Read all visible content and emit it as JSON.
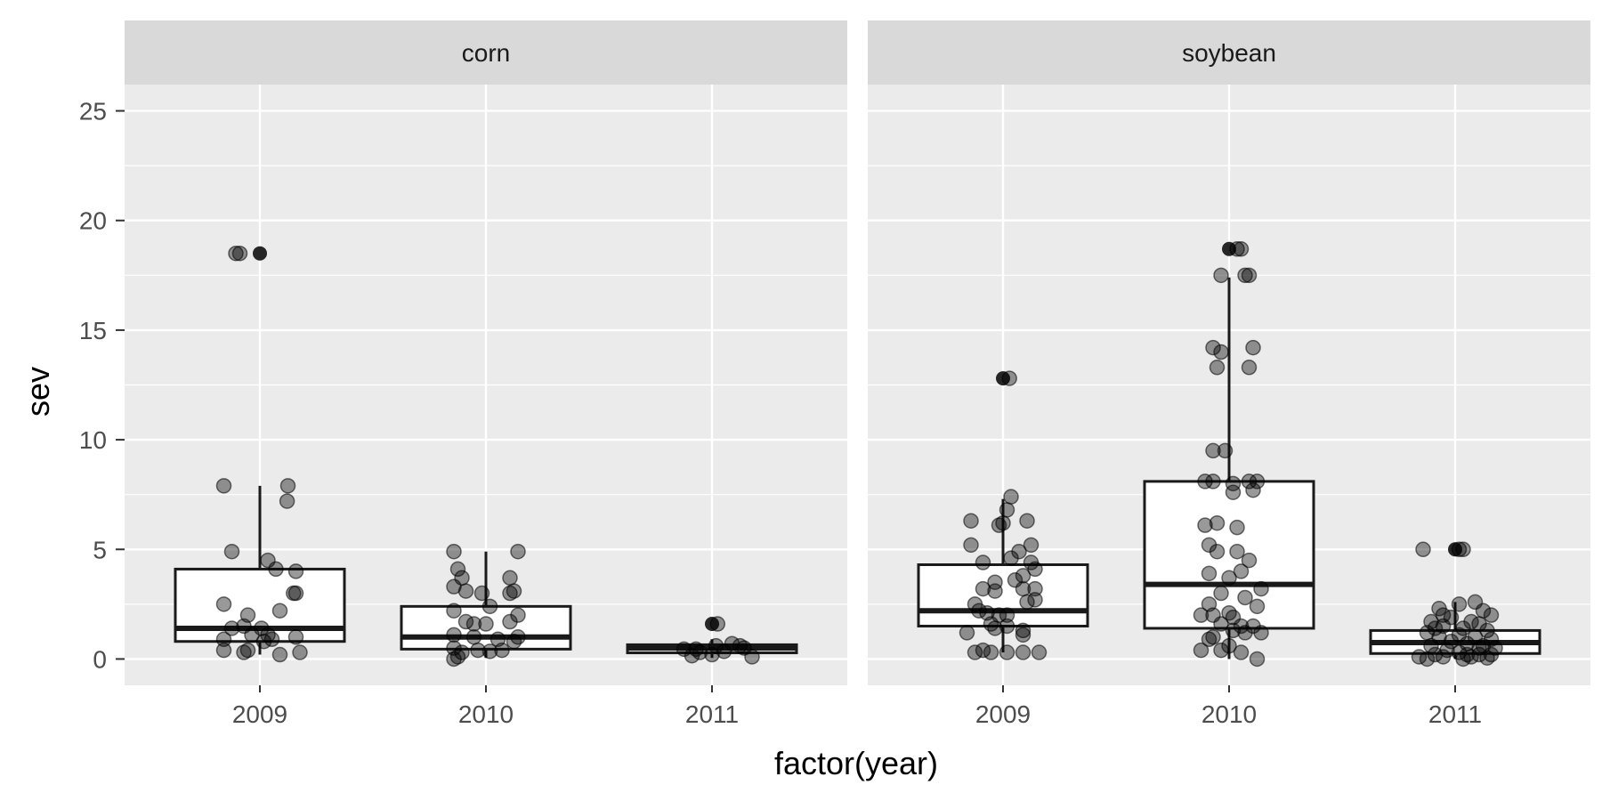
{
  "chart_data": {
    "type": "boxplot",
    "xlabel": "factor(year)",
    "ylabel": "sev",
    "ylim": [
      -1.2,
      26.2
    ],
    "yticks": [
      0,
      5,
      10,
      15,
      20,
      25
    ],
    "categories": [
      "2009",
      "2010",
      "2011"
    ],
    "colors": {
      "panel_bg": "#ebebeb",
      "strip_bg": "#d9d9d9",
      "grid": "#ffffff",
      "box_line": "#1a1a1a",
      "point": "#000000",
      "outlier": "#262626"
    },
    "panels": [
      {
        "name": "corn",
        "boxes": [
          {
            "category": "2009",
            "q1": 0.8,
            "median": 1.4,
            "q3": 4.1,
            "whisker_low": 0.2,
            "whisker_high": 7.9,
            "outliers": [
              18.5
            ],
            "points": [
              [
                -0.3,
                18.5
              ],
              [
                -0.25,
                18.5
              ],
              [
                -0.45,
                7.9
              ],
              [
                0.35,
                7.9
              ],
              [
                0.34,
                7.2
              ],
              [
                -0.35,
                4.9
              ],
              [
                0.1,
                4.5
              ],
              [
                0.2,
                4.1
              ],
              [
                0.45,
                4.0
              ],
              [
                0.45,
                3.0
              ],
              [
                0.42,
                3.0
              ],
              [
                -0.45,
                2.5
              ],
              [
                0.25,
                2.2
              ],
              [
                -0.15,
                2.0
              ],
              [
                -0.2,
                1.5
              ],
              [
                -0.35,
                1.4
              ],
              [
                0.02,
                1.4
              ],
              [
                -0.1,
                1.1
              ],
              [
                0.1,
                1.1
              ],
              [
                0.15,
                0.9
              ],
              [
                -0.45,
                0.9
              ],
              [
                0.45,
                1.0
              ],
              [
                -0.45,
                0.4
              ],
              [
                -0.2,
                0.3
              ],
              [
                0.25,
                0.2
              ],
              [
                0.5,
                0.3
              ],
              [
                -0.15,
                0.4
              ],
              [
                0.05,
                0.8
              ]
            ]
          },
          {
            "category": "2010",
            "q1": 0.45,
            "median": 1.0,
            "q3": 2.4,
            "whisker_low": 0.05,
            "whisker_high": 4.9,
            "outliers": [],
            "points": [
              [
                -0.4,
                4.9
              ],
              [
                0.4,
                4.9
              ],
              [
                -0.35,
                4.1
              ],
              [
                -0.3,
                3.7
              ],
              [
                0.3,
                3.7
              ],
              [
                -0.4,
                3.3
              ],
              [
                -0.25,
                3.1
              ],
              [
                -0.05,
                3.0
              ],
              [
                0.3,
                3.0
              ],
              [
                0.35,
                3.1
              ],
              [
                0.05,
                2.4
              ],
              [
                -0.4,
                2.2
              ],
              [
                -0.25,
                1.7
              ],
              [
                -0.15,
                1.6
              ],
              [
                0.0,
                1.6
              ],
              [
                0.3,
                1.7
              ],
              [
                0.4,
                2.0
              ],
              [
                -0.4,
                1.1
              ],
              [
                -0.15,
                1.0
              ],
              [
                0.15,
                0.9
              ],
              [
                0.4,
                1.0
              ],
              [
                -0.4,
                0.5
              ],
              [
                -0.3,
                0.3
              ],
              [
                -0.1,
                0.4
              ],
              [
                0.05,
                0.35
              ],
              [
                0.2,
                0.4
              ],
              [
                -0.35,
                0.1
              ],
              [
                -0.4,
                0.0
              ],
              [
                0.35,
                0.8
              ]
            ]
          },
          {
            "category": "2011",
            "q1": 0.28,
            "median": 0.5,
            "q3": 0.65,
            "whisker_low": 0.05,
            "whisker_high": 0.9,
            "outliers": [
              1.6
            ],
            "points": [
              [
                0.07,
                1.6
              ],
              [
                -0.2,
                0.45
              ],
              [
                -0.35,
                0.45
              ],
              [
                -0.15,
                0.3
              ],
              [
                0.05,
                0.6
              ],
              [
                0.25,
                0.7
              ],
              [
                0.35,
                0.6
              ],
              [
                0.4,
                0.5
              ],
              [
                -0.25,
                0.15
              ],
              [
                0.0,
                0.2
              ],
              [
                0.15,
                0.35
              ],
              [
                0.5,
                0.1
              ]
            ]
          }
        ]
      },
      {
        "name": "soybean",
        "boxes": [
          {
            "category": "2009",
            "q1": 1.5,
            "median": 2.2,
            "q3": 4.3,
            "whisker_low": 0.3,
            "whisker_high": 7.3,
            "outliers": [
              12.8
            ],
            "points": [
              [
                0.08,
                12.8
              ],
              [
                0.1,
                7.4
              ],
              [
                0.05,
                6.8
              ],
              [
                -0.4,
                6.3
              ],
              [
                0.0,
                6.2
              ],
              [
                -0.05,
                6.1
              ],
              [
                0.3,
                6.3
              ],
              [
                0.35,
                5.2
              ],
              [
                -0.4,
                5.2
              ],
              [
                0.2,
                4.9
              ],
              [
                0.1,
                4.6
              ],
              [
                -0.25,
                4.4
              ],
              [
                0.35,
                4.4
              ],
              [
                0.4,
                4.1
              ],
              [
                0.25,
                3.8
              ],
              [
                0.15,
                3.6
              ],
              [
                -0.1,
                3.5
              ],
              [
                0.25,
                3.2
              ],
              [
                0.4,
                3.2
              ],
              [
                -0.25,
                3.2
              ],
              [
                -0.1,
                3.1
              ],
              [
                0.4,
                2.7
              ],
              [
                0.3,
                2.6
              ],
              [
                -0.35,
                2.5
              ],
              [
                -0.3,
                2.2
              ],
              [
                -0.2,
                2.1
              ],
              [
                -0.05,
                2.0
              ],
              [
                0.05,
                2.0
              ],
              [
                -0.15,
                1.6
              ],
              [
                -0.1,
                1.4
              ],
              [
                0.25,
                1.3
              ],
              [
                -0.45,
                1.2
              ],
              [
                0.25,
                1.1
              ],
              [
                0.05,
                1.5
              ],
              [
                -0.35,
                0.3
              ],
              [
                -0.25,
                0.4
              ],
              [
                -0.15,
                0.3
              ],
              [
                0.05,
                0.3
              ],
              [
                0.25,
                0.3
              ],
              [
                0.45,
                0.3
              ]
            ]
          },
          {
            "category": "2010",
            "q1": 1.4,
            "median": 3.4,
            "q3": 8.1,
            "whisker_low": 0.0,
            "whisker_high": 17.4,
            "outliers": [
              18.7
            ],
            "points": [
              [
                0.1,
                18.7
              ],
              [
                0.15,
                18.7
              ],
              [
                0.2,
                17.5
              ],
              [
                0.25,
                17.5
              ],
              [
                -0.1,
                17.5
              ],
              [
                -0.2,
                14.2
              ],
              [
                0.3,
                14.2
              ],
              [
                -0.1,
                14.0
              ],
              [
                -0.15,
                13.3
              ],
              [
                0.25,
                13.3
              ],
              [
                -0.2,
                9.5
              ],
              [
                -0.05,
                9.5
              ],
              [
                -0.3,
                8.1
              ],
              [
                -0.2,
                8.1
              ],
              [
                0.05,
                8.0
              ],
              [
                0.25,
                8.1
              ],
              [
                0.35,
                8.1
              ],
              [
                0.3,
                7.7
              ],
              [
                0.05,
                7.6
              ],
              [
                -0.15,
                6.2
              ],
              [
                -0.3,
                6.1
              ],
              [
                0.1,
                6.0
              ],
              [
                -0.25,
                5.2
              ],
              [
                -0.15,
                4.9
              ],
              [
                0.1,
                4.9
              ],
              [
                0.25,
                4.5
              ],
              [
                0.15,
                4.0
              ],
              [
                -0.25,
                3.9
              ],
              [
                0.0,
                3.7
              ],
              [
                0.4,
                3.2
              ],
              [
                -0.1,
                3.0
              ],
              [
                0.2,
                2.8
              ],
              [
                -0.25,
                2.5
              ],
              [
                0.35,
                2.4
              ],
              [
                0.0,
                2.1
              ],
              [
                -0.35,
                2.0
              ],
              [
                -0.2,
                2.0
              ],
              [
                0.05,
                1.9
              ],
              [
                -0.1,
                1.6
              ],
              [
                0.15,
                1.5
              ],
              [
                0.3,
                1.5
              ],
              [
                0.05,
                1.3
              ],
              [
                0.2,
                1.2
              ],
              [
                0.4,
                1.2
              ],
              [
                -0.25,
                0.9
              ],
              [
                0.0,
                0.6
              ],
              [
                0.15,
                0.3
              ],
              [
                -0.35,
                0.4
              ],
              [
                0.35,
                0.0
              ],
              [
                -0.1,
                0.4
              ],
              [
                -0.2,
                1.0
              ]
            ]
          },
          {
            "category": "2011",
            "q1": 0.25,
            "median": 0.75,
            "q3": 1.3,
            "whisker_low": 0.0,
            "whisker_high": 2.6,
            "outliers": [
              5.0
            ],
            "points": [
              [
                0.05,
                5.0
              ],
              [
                0.1,
                5.0
              ],
              [
                -0.4,
                5.0
              ],
              [
                0.25,
                2.6
              ],
              [
                0.05,
                2.5
              ],
              [
                -0.2,
                2.3
              ],
              [
                0.35,
                2.2
              ],
              [
                0.45,
                2.0
              ],
              [
                -0.15,
                2.0
              ],
              [
                -0.3,
                1.7
              ],
              [
                0.2,
                1.7
              ],
              [
                0.3,
                1.6
              ],
              [
                -0.15,
                1.5
              ],
              [
                0.1,
                1.4
              ],
              [
                -0.25,
                1.4
              ],
              [
                0.4,
                1.3
              ],
              [
                -0.35,
                1.2
              ],
              [
                0.05,
                1.1
              ],
              [
                -0.2,
                1.0
              ],
              [
                0.25,
                1.0
              ],
              [
                0.45,
                0.9
              ],
              [
                -0.05,
                0.8
              ],
              [
                0.15,
                0.7
              ],
              [
                -0.3,
                0.6
              ],
              [
                0.35,
                0.6
              ],
              [
                0.5,
                0.5
              ],
              [
                -0.1,
                0.4
              ],
              [
                0.05,
                0.3
              ],
              [
                -0.25,
                0.2
              ],
              [
                0.3,
                0.2
              ],
              [
                0.45,
                0.2
              ],
              [
                -0.45,
                0.1
              ],
              [
                -0.35,
                0.0
              ],
              [
                0.1,
                0.0
              ],
              [
                0.2,
                0.1
              ],
              [
                0.4,
                0.05
              ],
              [
                -0.15,
                0.1
              ],
              [
                0.3,
                0.5
              ],
              [
                -0.05,
                1.9
              ],
              [
                0.15,
                0.2
              ]
            ]
          }
        ]
      }
    ]
  }
}
